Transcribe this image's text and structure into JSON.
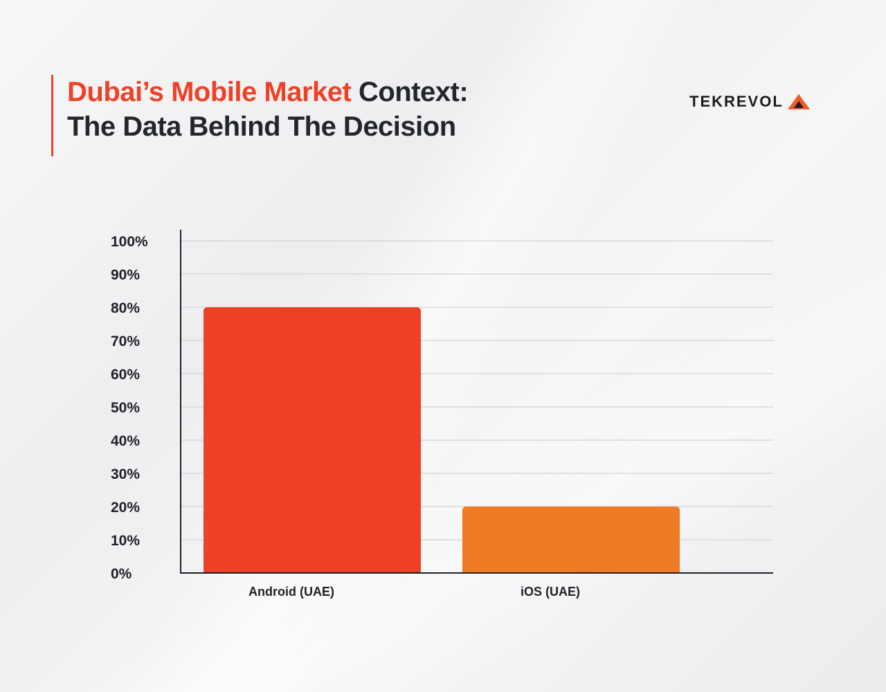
{
  "header": {
    "title_accent": "Dubai’s Mobile Market",
    "title_rest": " Context:",
    "title_line2": "The Data Behind The Decision"
  },
  "logo": {
    "text": "TEKREVOL",
    "accent_color": "#f05a28"
  },
  "colors": {
    "android": "#ee4027",
    "ios": "#f07b24",
    "accent": "#ee4125"
  },
  "chart_data": {
    "type": "bar",
    "categories": [
      "Android (UAE)",
      "iOS (UAE)"
    ],
    "values": [
      80,
      20
    ],
    "ylim": [
      0,
      100
    ],
    "yticks": [
      "0%",
      "10%",
      "20%",
      "30%",
      "40%",
      "50%",
      "60%",
      "70%",
      "80%",
      "90%",
      "100%"
    ],
    "tick_values": [
      0,
      10,
      20,
      30,
      40,
      50,
      60,
      70,
      80,
      90,
      100
    ],
    "grid": true,
    "title": "",
    "xlabel": "",
    "ylabel": ""
  }
}
